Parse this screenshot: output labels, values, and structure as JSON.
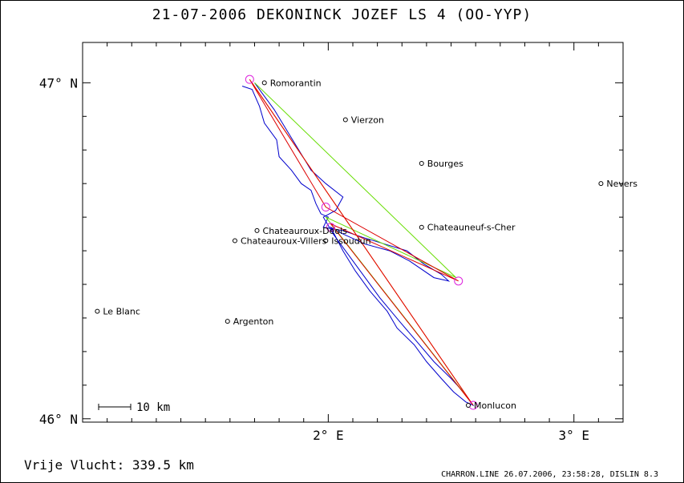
{
  "title": "21-07-2006   DEKONINCK JOZEF   LS 4 (OO-YYP)",
  "footer": {
    "distance": "Vrije Vlucht:  339.5 km",
    "credits": "CHARRON.LINE 26.07.2006, 23:58:28, DISLIN 8.3"
  },
  "axes": {
    "lat_labels": [
      {
        "value": 47,
        "text": "47° N"
      },
      {
        "value": 46,
        "text": "46° N"
      }
    ],
    "lon_labels": [
      {
        "value": 2,
        "text": "2° E"
      },
      {
        "value": 3,
        "text": "3° E"
      }
    ],
    "lon_range": [
      1.0,
      3.2
    ],
    "lat_range": [
      45.99,
      47.12
    ]
  },
  "scale_bar": {
    "label": "10 km"
  },
  "places": [
    {
      "name": "Romorantin",
      "lon": 1.74,
      "lat": 47.0
    },
    {
      "name": "Vierzon",
      "lon": 2.07,
      "lat": 46.89
    },
    {
      "name": "Bourges",
      "lon": 2.38,
      "lat": 46.76
    },
    {
      "name": "Nevers",
      "lon": 3.11,
      "lat": 46.7
    },
    {
      "name": "Issoudun",
      "lon": 1.99,
      "lat": 46.53
    },
    {
      "name": "Chateauroux-Deols",
      "lon": 1.71,
      "lat": 46.56
    },
    {
      "name": "Chateauneuf-s-Cher",
      "lon": 2.38,
      "lat": 46.57
    },
    {
      "name": "Chateauroux-Villers",
      "lon": 1.62,
      "lat": 46.53
    },
    {
      "name": "Le Blanc",
      "lon": 1.06,
      "lat": 46.32
    },
    {
      "name": "Argenton",
      "lon": 1.59,
      "lat": 46.29
    },
    {
      "name": "Monlucon",
      "lon": 2.57,
      "lat": 46.04
    }
  ],
  "turnpoints": [
    {
      "lon": 1.68,
      "lat": 47.01
    },
    {
      "lon": 1.99,
      "lat": 46.63
    },
    {
      "lon": 2.53,
      "lat": 46.41
    },
    {
      "lon": 2.01,
      "lat": 46.57
    },
    {
      "lon": 2.59,
      "lat": 46.04
    }
  ],
  "legs": {
    "red": [
      [
        1.68,
        47.01
      ],
      [
        2.59,
        46.04
      ],
      [
        2.01,
        46.58
      ],
      [
        2.53,
        46.41
      ],
      [
        1.99,
        46.63
      ],
      [
        1.68,
        47.01
      ]
    ],
    "orange": [
      [
        1.69,
        47.0
      ],
      [
        2.58,
        46.05
      ]
    ],
    "green": [
      [
        1.7,
        47.0
      ],
      [
        2.52,
        46.42
      ],
      [
        1.99,
        46.6
      ],
      [
        2.58,
        46.05
      ]
    ]
  },
  "track": [
    [
      1.65,
      46.99
    ],
    [
      1.69,
      46.98
    ],
    [
      1.72,
      46.93
    ],
    [
      1.74,
      46.88
    ],
    [
      1.79,
      46.83
    ],
    [
      1.8,
      46.78
    ],
    [
      1.85,
      46.74
    ],
    [
      1.89,
      46.7
    ],
    [
      1.93,
      46.68
    ],
    [
      1.95,
      46.64
    ],
    [
      1.97,
      46.61
    ],
    [
      2.0,
      46.6
    ],
    [
      1.98,
      46.57
    ],
    [
      2.06,
      46.56
    ],
    [
      2.14,
      46.54
    ],
    [
      2.23,
      46.52
    ],
    [
      2.32,
      46.5
    ],
    [
      2.39,
      46.46
    ],
    [
      2.46,
      46.43
    ],
    [
      2.49,
      46.41
    ],
    [
      2.43,
      46.42
    ],
    [
      2.33,
      46.47
    ],
    [
      2.25,
      46.5
    ],
    [
      2.15,
      46.52
    ],
    [
      2.06,
      46.55
    ],
    [
      2.01,
      46.57
    ],
    [
      2.06,
      46.5
    ],
    [
      2.11,
      46.44
    ],
    [
      2.17,
      46.38
    ],
    [
      2.24,
      46.32
    ],
    [
      2.28,
      46.27
    ],
    [
      2.35,
      46.22
    ],
    [
      2.4,
      46.17
    ],
    [
      2.46,
      46.12
    ],
    [
      2.51,
      46.08
    ],
    [
      2.56,
      46.05
    ],
    [
      2.59,
      46.04
    ],
    [
      2.55,
      46.08
    ],
    [
      2.5,
      46.12
    ],
    [
      2.43,
      46.17
    ],
    [
      2.36,
      46.23
    ],
    [
      2.29,
      46.29
    ],
    [
      2.21,
      46.36
    ],
    [
      2.14,
      46.43
    ],
    [
      2.07,
      46.5
    ],
    [
      2.02,
      46.55
    ],
    [
      1.98,
      46.6
    ],
    [
      2.03,
      46.62
    ],
    [
      2.06,
      46.66
    ],
    [
      1.99,
      46.7
    ],
    [
      1.93,
      46.74
    ],
    [
      1.88,
      46.8
    ],
    [
      1.83,
      46.86
    ],
    [
      1.78,
      46.92
    ],
    [
      1.73,
      46.97
    ],
    [
      1.7,
      47.0
    ]
  ]
}
